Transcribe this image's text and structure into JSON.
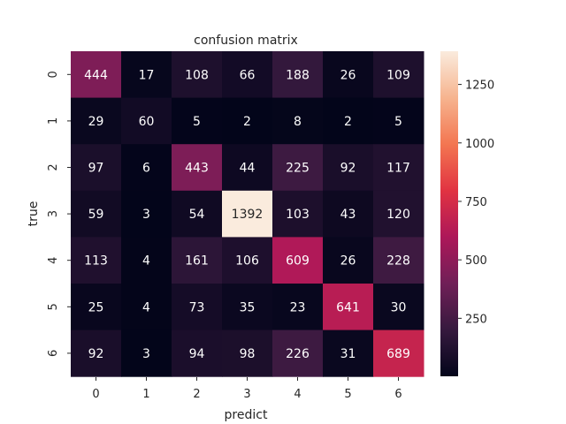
{
  "chart_data": {
    "type": "heatmap",
    "title": "confusion matrix",
    "xlabel": "predict",
    "ylabel": "true",
    "x_categories": [
      "0",
      "1",
      "2",
      "3",
      "4",
      "5",
      "6"
    ],
    "y_categories": [
      "0",
      "1",
      "2",
      "3",
      "4",
      "5",
      "6"
    ],
    "values": [
      [
        444,
        17,
        108,
        66,
        188,
        26,
        109
      ],
      [
        29,
        60,
        5,
        2,
        8,
        2,
        5
      ],
      [
        97,
        6,
        443,
        44,
        225,
        92,
        117
      ],
      [
        59,
        3,
        54,
        1392,
        103,
        43,
        120
      ],
      [
        113,
        4,
        161,
        106,
        609,
        26,
        228
      ],
      [
        25,
        4,
        73,
        35,
        23,
        641,
        30
      ],
      [
        92,
        3,
        94,
        98,
        226,
        31,
        689
      ]
    ],
    "vmin": 2,
    "vmax": 1392,
    "colorbar_ticks": [
      250,
      500,
      750,
      1000,
      1250
    ],
    "colormap": "rocket",
    "colormap_stops": [
      "#03051a",
      "#36193e",
      "#701f57",
      "#ad1759",
      "#e13342",
      "#f37651",
      "#f6b48f",
      "#faebdd"
    ],
    "annotation_dark_text_color": "#262626",
    "annotation_light_text_color": "#ffffff"
  }
}
